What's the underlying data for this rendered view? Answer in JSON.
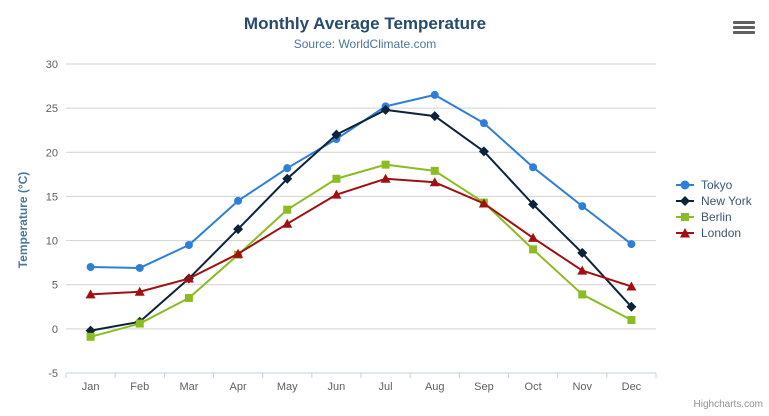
{
  "header": {
    "title": "Monthly Average Temperature",
    "subtitle": "Source: WorldClimate.com"
  },
  "export_menu": {
    "icon": "hamburger-menu-icon"
  },
  "credit": {
    "label": "Highcharts.com"
  },
  "theme": {
    "title_color": "#274b6d",
    "subtitle_color": "#4d759e",
    "axis_title_color": "#4d759e",
    "tick_label_color": "#606060",
    "grid_color": "#d2d2d2",
    "axis_line_color": "#c0d0e0",
    "legend_text_color": "#3e576f",
    "credit_color": "#909090",
    "menu_icon_color": "#606060",
    "background": "#ffffff"
  },
  "chart_data": {
    "type": "line",
    "title": "Monthly Average Temperature",
    "subtitle": "Source: WorldClimate.com",
    "xlabel": "",
    "ylabel": "Temperature (°C)",
    "ylim": [
      -5,
      30
    ],
    "yticks": [
      -5,
      0,
      5,
      10,
      15,
      20,
      25,
      30
    ],
    "grid": true,
    "legend_position": "right",
    "categories": [
      "Jan",
      "Feb",
      "Mar",
      "Apr",
      "May",
      "Jun",
      "Jul",
      "Aug",
      "Sep",
      "Oct",
      "Nov",
      "Dec"
    ],
    "series": [
      {
        "name": "Tokyo",
        "color": "#2f7ed8",
        "marker": "circle",
        "values": [
          7.0,
          6.9,
          9.5,
          14.5,
          18.2,
          21.5,
          25.2,
          26.5,
          23.3,
          18.3,
          13.9,
          9.6
        ]
      },
      {
        "name": "New York",
        "color": "#0d233a",
        "marker": "diamond",
        "values": [
          -0.2,
          0.8,
          5.7,
          11.3,
          17.0,
          22.0,
          24.8,
          24.1,
          20.1,
          14.1,
          8.6,
          2.5
        ]
      },
      {
        "name": "Berlin",
        "color": "#8bbc21",
        "marker": "square",
        "values": [
          -0.9,
          0.6,
          3.5,
          8.4,
          13.5,
          17.0,
          18.6,
          17.9,
          14.3,
          9.0,
          3.9,
          1.0
        ]
      },
      {
        "name": "London",
        "color": "#a01010",
        "marker": "triangle",
        "values": [
          3.9,
          4.2,
          5.7,
          8.5,
          11.9,
          15.2,
          17.0,
          16.6,
          14.2,
          10.3,
          6.6,
          4.8
        ]
      }
    ]
  }
}
